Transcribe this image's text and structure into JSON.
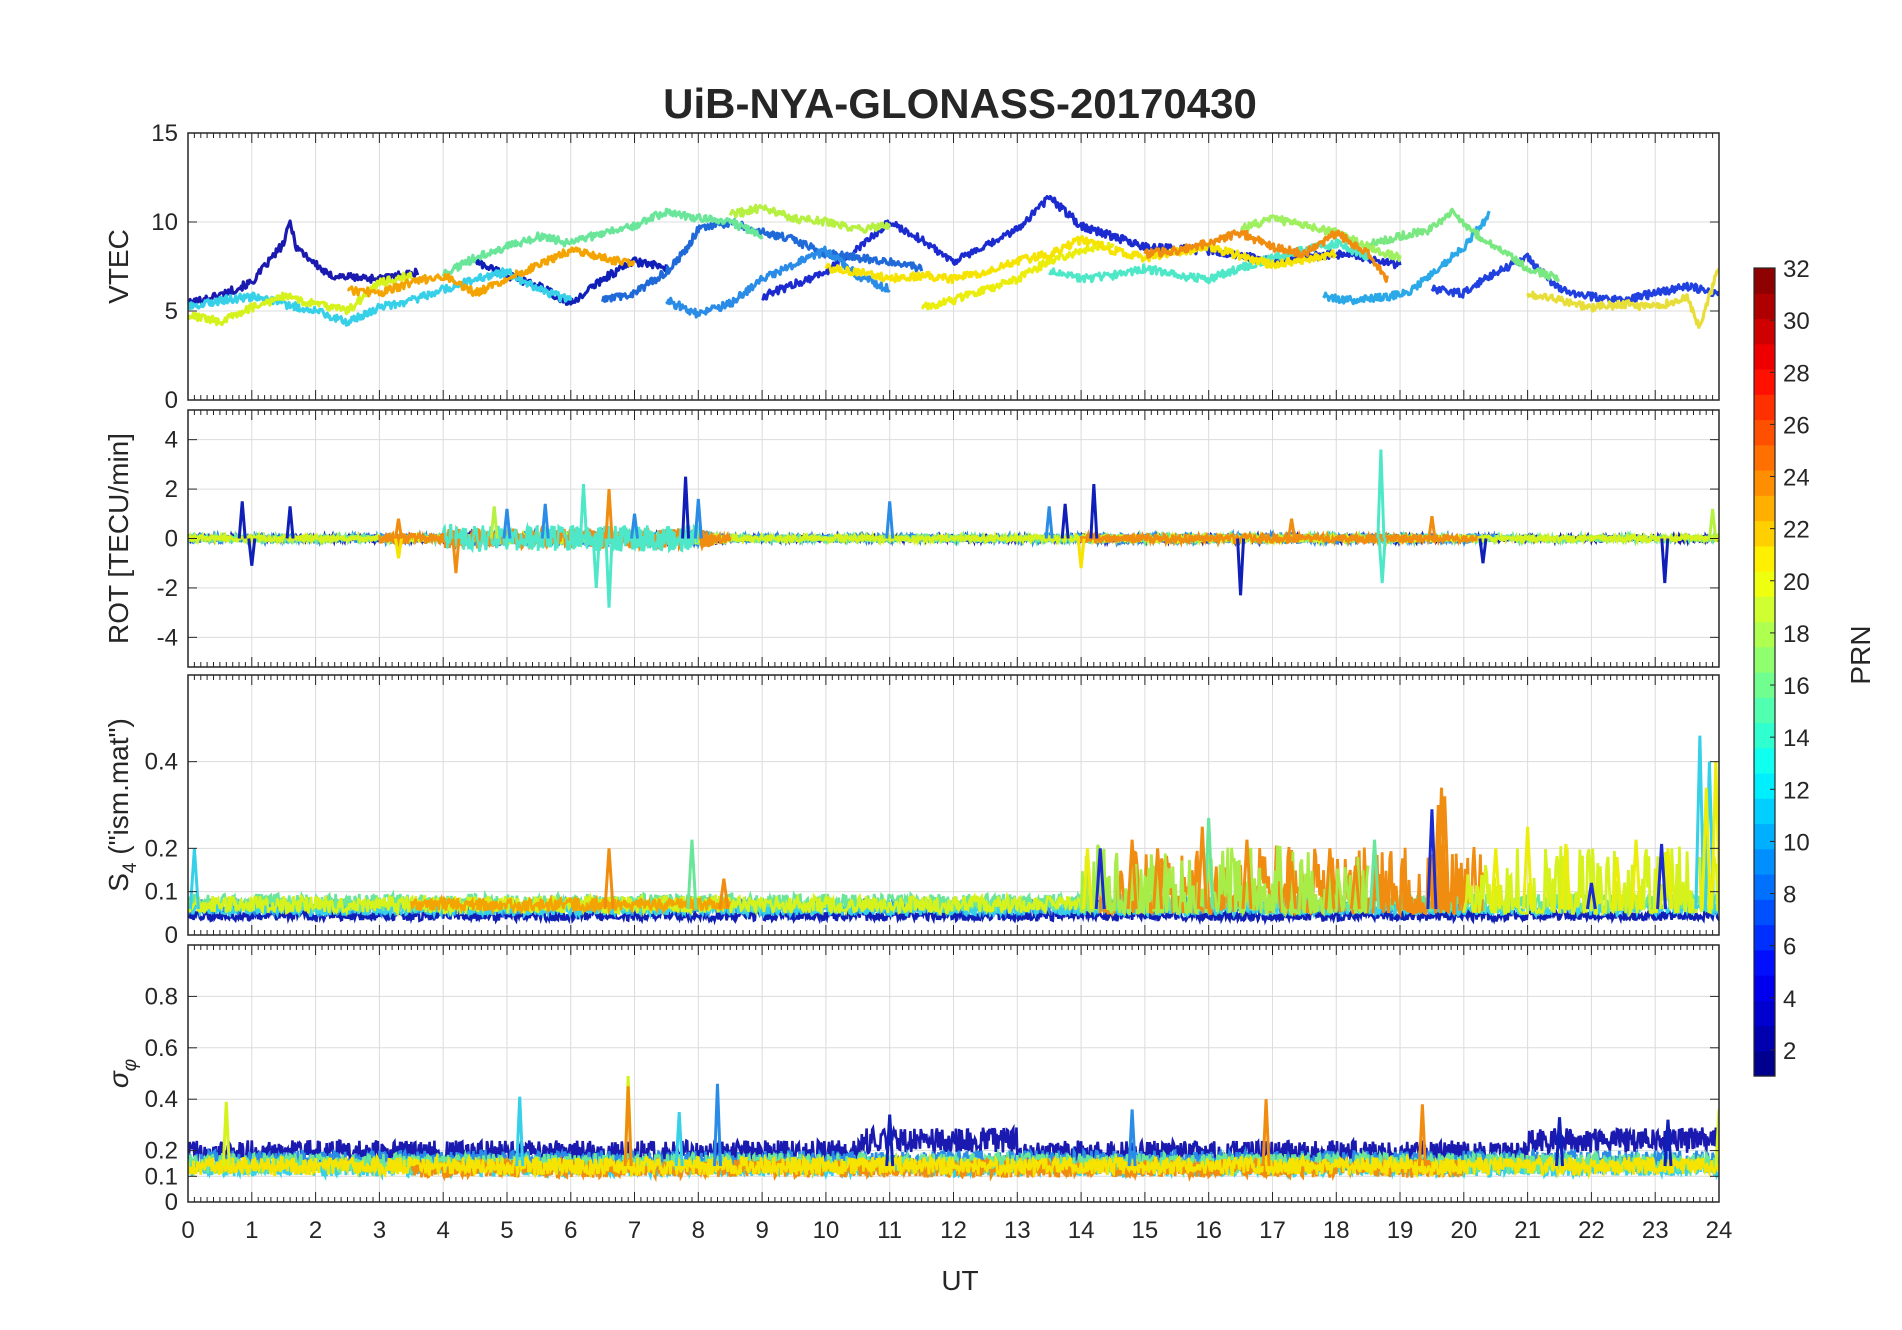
{
  "title": "UiB-NYA-GLONASS-20170430",
  "chart_data": {
    "type": "line",
    "title": "UiB-NYA-GLONASS-20170430",
    "xlabel": "UT",
    "xlim": [
      0,
      24
    ],
    "xticks": [
      "0",
      "1",
      "2",
      "3",
      "4",
      "5",
      "6",
      "7",
      "8",
      "9",
      "10",
      "11",
      "12",
      "13",
      "14",
      "15",
      "16",
      "17",
      "18",
      "19",
      "20",
      "21",
      "22",
      "23",
      "24"
    ],
    "grid": true,
    "colorbar": {
      "label": "PRN",
      "range": [
        1,
        32
      ],
      "ticks": [
        "2",
        "4",
        "6",
        "8",
        "10",
        "12",
        "14",
        "16",
        "18",
        "20",
        "22",
        "24",
        "26",
        "28",
        "30",
        "32"
      ],
      "colormap": "jet"
    },
    "panels": [
      {
        "id": "vtec",
        "ylabel": "VTEC",
        "ylim": [
          0,
          15
        ],
        "yticks": [
          "0",
          "5",
          "10",
          "15"
        ],
        "series": [
          {
            "prn": 1,
            "color": "#1a1ab0",
            "x": [
              0.0,
              0.5,
              1.0,
              1.5,
              1.6,
              1.7,
              2.2,
              3.0,
              3.6
            ],
            "y": [
              5.4,
              5.9,
              6.6,
              8.8,
              10.0,
              8.6,
              7.0,
              6.8,
              7.2
            ]
          },
          {
            "prn": 2,
            "color": "#0f1fb8",
            "x": [
              4.5,
              5.0,
              5.5,
              6.0,
              6.5,
              7.0,
              7.5
            ],
            "y": [
              7.8,
              7.0,
              6.4,
              5.4,
              6.8,
              7.8,
              7.4
            ]
          },
          {
            "prn": 3,
            "color": "#1b2bd0",
            "x": [
              9.0,
              9.5,
              10.0,
              10.5,
              11.0,
              11.5,
              12.0,
              12.5,
              13.0,
              13.5,
              14.0,
              14.5,
              15.0,
              16.0,
              17.0,
              18.0,
              19.0
            ],
            "y": [
              5.8,
              6.5,
              7.2,
              8.5,
              10.0,
              9.0,
              7.8,
              8.6,
              9.6,
              11.4,
              9.8,
              9.2,
              8.6,
              8.4,
              7.8,
              8.2,
              7.6
            ]
          },
          {
            "prn": 4,
            "color": "#2040e0",
            "x": [
              19.5,
              20.0,
              20.5,
              21.0,
              21.5,
              22.0,
              22.5,
              23.0,
              23.5,
              24.0
            ],
            "y": [
              6.2,
              6.0,
              7.2,
              8.0,
              6.2,
              5.8,
              5.6,
              6.0,
              6.4,
              6.0
            ]
          },
          {
            "prn": 6,
            "color": "#1f6ad8",
            "x": [
              6.5,
              7.0,
              7.5,
              7.8,
              8.0,
              8.5,
              9.0,
              9.5,
              10.0,
              11.0,
              11.5
            ],
            "y": [
              5.6,
              6.0,
              7.2,
              8.4,
              9.6,
              10.0,
              9.4,
              9.0,
              8.2,
              7.8,
              7.4
            ]
          },
          {
            "prn": 8,
            "color": "#2a8ce6",
            "x": [
              7.5,
              8.0,
              8.5,
              9.0,
              9.5,
              10.0,
              10.5,
              11.0
            ],
            "y": [
              5.6,
              4.8,
              5.4,
              6.8,
              7.6,
              8.4,
              7.0,
              6.2
            ]
          },
          {
            "prn": 10,
            "color": "#2aa8e8",
            "x": [
              17.8,
              18.2,
              18.8,
              19.2,
              19.6,
              20.0,
              20.4
            ],
            "y": [
              5.8,
              5.6,
              5.8,
              6.2,
              7.4,
              8.6,
              10.4
            ]
          },
          {
            "prn": 12,
            "color": "#36d0e8",
            "x": [
              0.0,
              0.5,
              1.0,
              1.5,
              2.0,
              2.5,
              3.0,
              3.5,
              4.0,
              4.5,
              5.0,
              5.5,
              6.0
            ],
            "y": [
              5.2,
              5.6,
              5.8,
              5.4,
              5.0,
              4.4,
              5.2,
              5.6,
              6.2,
              6.8,
              7.2,
              6.2,
              5.6
            ]
          },
          {
            "prn": 13,
            "color": "#4ee8c8",
            "x": [
              13.5,
              14.0,
              14.5,
              15.0,
              15.5,
              16.0,
              16.5,
              17.0,
              17.5,
              18.0,
              18.5
            ],
            "y": [
              7.2,
              6.8,
              7.0,
              7.4,
              7.0,
              6.8,
              7.4,
              8.0,
              8.4,
              8.8,
              8.0
            ]
          },
          {
            "prn": 15,
            "color": "#6ae69a",
            "x": [
              4.0,
              4.5,
              5.0,
              5.5,
              6.0,
              6.5,
              7.0,
              7.5,
              8.0,
              8.5,
              9.0
            ],
            "y": [
              7.0,
              8.0,
              8.6,
              9.2,
              8.8,
              9.4,
              9.8,
              10.6,
              10.2,
              10.0,
              9.2
            ]
          },
          {
            "prn": 16,
            "color": "#7ae880",
            "x": [
              18.5,
              19.0,
              19.5,
              19.8,
              20.0,
              20.5,
              21.0,
              21.5
            ],
            "y": [
              8.8,
              9.2,
              9.6,
              10.6,
              9.8,
              8.6,
              7.4,
              6.8
            ]
          },
          {
            "prn": 17,
            "color": "#9ef05e",
            "x": [
              16.5,
              17.0,
              17.5,
              18.0,
              18.5,
              19.0
            ],
            "y": [
              9.6,
              10.2,
              9.8,
              9.4,
              8.6,
              8.0
            ]
          },
          {
            "prn": 18,
            "color": "#b6f040",
            "x": [
              8.5,
              9.0,
              9.5,
              10.0,
              10.5,
              11.0
            ],
            "y": [
              10.4,
              10.8,
              10.2,
              10.0,
              9.6,
              9.8
            ]
          },
          {
            "prn": 19,
            "color": "#d6f21c",
            "x": [
              0.0,
              0.5,
              1.0,
              1.5,
              2.0,
              2.5,
              3.0,
              3.5
            ],
            "y": [
              4.8,
              4.4,
              5.2,
              5.8,
              5.4,
              5.0,
              6.6,
              7.0
            ]
          },
          {
            "prn": 20,
            "color": "#eaee0a",
            "x": [
              11.5,
              12.0,
              12.5,
              13.0,
              13.5,
              14.0,
              14.5
            ],
            "y": [
              5.2,
              5.6,
              6.2,
              6.8,
              7.8,
              8.4,
              8.8
            ]
          },
          {
            "prn": 21,
            "color": "#f6e400",
            "x": [
              10.0,
              10.5,
              11.0,
              11.5,
              12.0,
              12.5,
              13.0,
              13.5,
              14.0,
              14.5,
              15.0,
              16.0,
              17.0,
              18.0
            ],
            "y": [
              7.4,
              7.2,
              6.8,
              7.0,
              6.8,
              7.2,
              7.8,
              8.2,
              9.0,
              8.4,
              8.0,
              8.6,
              7.6,
              8.2
            ]
          },
          {
            "prn": 22,
            "color": "#e8de3a",
            "x": [
              21.0,
              21.5,
              22.0,
              22.5,
              23.0,
              23.5,
              23.7,
              24.0
            ],
            "y": [
              6.0,
              5.6,
              5.2,
              5.4,
              5.2,
              5.8,
              4.0,
              7.6
            ]
          },
          {
            "prn": 23,
            "color": "#f4a400",
            "x": [
              2.5,
              3.0,
              3.5,
              4.0,
              4.5,
              5.0,
              5.5,
              6.0,
              6.5,
              7.0
            ],
            "y": [
              6.2,
              6.0,
              6.6,
              7.0,
              6.0,
              6.8,
              7.6,
              8.4,
              8.0,
              7.6
            ]
          },
          {
            "prn": 24,
            "color": "#f08c10",
            "x": [
              15.0,
              15.5,
              16.0,
              16.5,
              17.0,
              17.5,
              18.0,
              18.5,
              18.8
            ],
            "y": [
              8.2,
              8.4,
              8.8,
              9.4,
              8.6,
              8.2,
              9.4,
              8.2,
              6.8
            ]
          }
        ]
      },
      {
        "id": "rot",
        "ylabel": "ROT [TECU/min]",
        "ylim": [
          -5.2,
          5.2
        ],
        "yticks": [
          "-4",
          "-2",
          "0",
          "2",
          "4"
        ],
        "spikes": [
          {
            "prn": 2,
            "color": "#0f1fb8",
            "x": [
              0.85,
              1.0,
              1.6,
              7.8,
              13.75,
              14.2,
              16.5,
              20.3,
              23.15
            ],
            "y": [
              1.5,
              -1.1,
              1.3,
              2.5,
              1.4,
              2.2,
              -2.3,
              -1.0,
              -1.8
            ]
          },
          {
            "prn": 8,
            "color": "#2a8ce6",
            "x": [
              5.0,
              5.6,
              7.0,
              8.0,
              11.0,
              13.5
            ],
            "y": [
              1.2,
              1.4,
              1.0,
              1.6,
              1.5,
              1.3
            ]
          },
          {
            "prn": 13,
            "color": "#4ee8c8",
            "x": [
              6.2,
              6.4,
              6.6,
              18.7,
              18.72
            ],
            "y": [
              2.2,
              -2.0,
              -2.8,
              3.6,
              -1.8
            ]
          },
          {
            "prn": 18,
            "color": "#b6f040",
            "x": [
              4.8,
              23.9
            ],
            "y": [
              1.3,
              1.2
            ]
          },
          {
            "prn": 21,
            "color": "#f6e400",
            "x": [
              3.3,
              14.0
            ],
            "y": [
              -0.8,
              -1.2
            ]
          },
          {
            "prn": 24,
            "color": "#f08c10",
            "x": [
              3.3,
              4.2,
              6.6,
              17.3,
              19.5
            ],
            "y": [
              0.8,
              -1.4,
              2.0,
              0.8,
              0.9
            ]
          }
        ]
      },
      {
        "id": "s4",
        "ylabel": "S4 (\"ism.mat\")",
        "ylabel_main": "S",
        "ylabel_sub": "4",
        "ylabel_rest": " (\"ism.mat\")",
        "ylim": [
          0,
          0.6
        ],
        "yticks": [
          "0",
          "0.1",
          "0.2",
          "0.4"
        ],
        "peaks": [
          {
            "prn": 12,
            "color": "#36d0e8",
            "x": [
              0.1,
              23.7,
              23.85
            ],
            "y": [
              0.2,
              0.46,
              0.4
            ]
          },
          {
            "prn": 15,
            "color": "#6ae69a",
            "x": [
              7.9,
              16.0,
              18.6
            ],
            "y": [
              0.22,
              0.27,
              0.22
            ]
          },
          {
            "prn": 24,
            "color": "#f08c10",
            "x": [
              6.6,
              8.4,
              14.8,
              15.2,
              15.9,
              16.6,
              17.3,
              17.9,
              18.3,
              19.6,
              19.65,
              19.7
            ],
            "y": [
              0.2,
              0.13,
              0.22,
              0.2,
              0.25,
              0.22,
              0.17,
              0.2,
              0.16,
              0.3,
              0.34,
              0.32
            ]
          },
          {
            "prn": 20,
            "color": "#eaee0a",
            "x": [
              14.1,
              20.5,
              21.0,
              21.6,
              22.4,
              22.7,
              23.2,
              23.8,
              23.95
            ],
            "y": [
              0.2,
              0.2,
              0.25,
              0.21,
              0.18,
              0.22,
              0.2,
              0.34,
              0.4
            ]
          },
          {
            "prn": 3,
            "color": "#1b2bd0",
            "x": [
              14.3,
              19.5,
              22.0,
              23.1
            ],
            "y": [
              0.2,
              0.29,
              0.12,
              0.21
            ]
          }
        ]
      },
      {
        "id": "sigma",
        "ylabel": "σφ",
        "ylabel_main": "σ",
        "ylabel_sub": "φ",
        "ylim": [
          0,
          1
        ],
        "yticks": [
          "0",
          "0.1",
          "0.2",
          "0.4",
          "0.6",
          "0.8"
        ],
        "peaks": [
          {
            "prn": 19,
            "color": "#d6f21c",
            "x": [
              0.6,
              6.9,
              24.0
            ],
            "y": [
              0.39,
              0.49,
              0.36
            ]
          },
          {
            "prn": 12,
            "color": "#36d0e8",
            "x": [
              5.2,
              7.7
            ],
            "y": [
              0.41,
              0.35
            ]
          },
          {
            "prn": 8,
            "color": "#2a8ce6",
            "x": [
              8.3,
              14.8
            ],
            "y": [
              0.46,
              0.36
            ]
          },
          {
            "prn": 24,
            "color": "#f08c10",
            "x": [
              6.9,
              16.9,
              19.35
            ],
            "y": [
              0.45,
              0.4,
              0.38
            ]
          },
          {
            "prn": 2,
            "color": "#0f1fb8",
            "x": [
              11.0,
              21.5,
              23.2
            ],
            "y": [
              0.34,
              0.33,
              0.32
            ]
          }
        ]
      }
    ]
  }
}
